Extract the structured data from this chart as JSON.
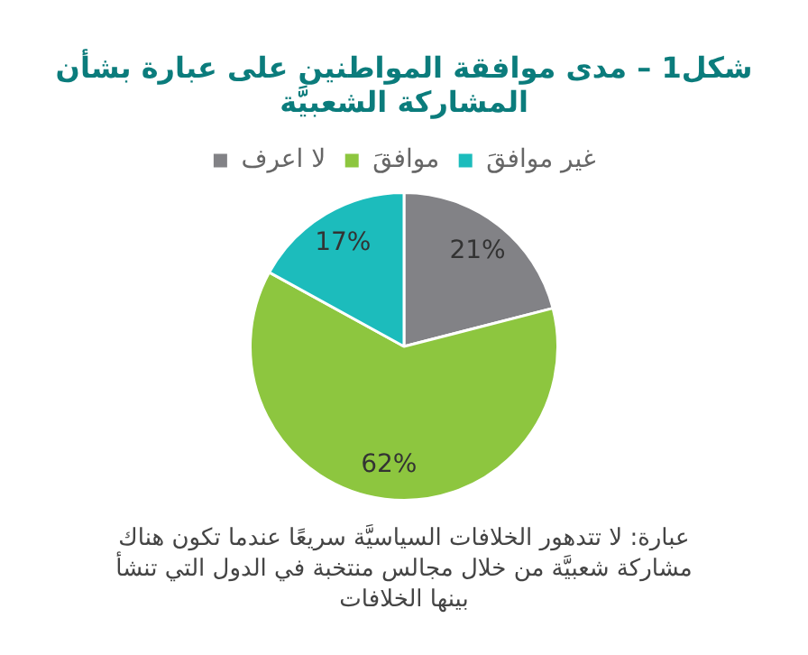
{
  "chart_data": {
    "type": "pie",
    "title": "شكل1 – مدى موافقة المواطنين على عبارة بشأن المشاركة الشعبيَّة",
    "categories": [
      "لا اعرف",
      "موافقَ",
      "غير موافقَ"
    ],
    "values": [
      21,
      62,
      17
    ],
    "colors": [
      "#828286",
      "#8dc63f",
      "#1cbcbc"
    ],
    "value_labels": [
      "21%",
      "62%",
      "17%"
    ],
    "legend": "top",
    "annotations": [
      "عبارة: لا تتدهور الخلافات السياسيَّة سريعًا عندما تكون هناك مشاركة شعبيَّة من خلال مجالس منتخبة في الدول التي تنشأ بينها الخلافات"
    ]
  }
}
